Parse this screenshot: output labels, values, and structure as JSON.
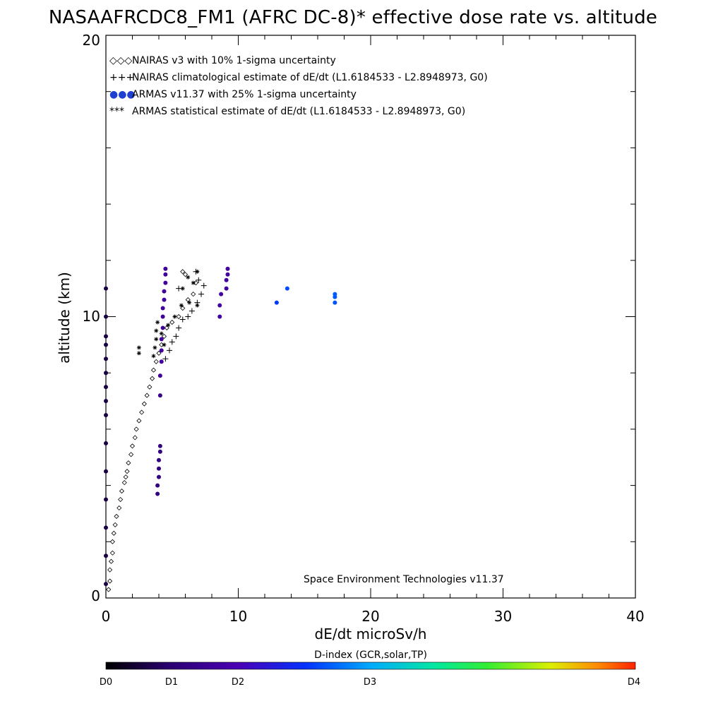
{
  "chart_data": {
    "type": "scatter",
    "title": "NASAAFRCDC8_FM1 (AFRC DC-8)* effective dose rate vs. altitude",
    "xlabel": "dE/dt microSv/h",
    "ylabel": "altitude (km)",
    "xlim": [
      0,
      40
    ],
    "ylim": [
      0,
      20
    ],
    "x_ticks": [
      "0",
      "10",
      "20",
      "30",
      "40"
    ],
    "y_ticks": [
      "0",
      "10",
      "20"
    ],
    "annotation": "Space Environment Technologies v11.37",
    "legend_position": "top-left",
    "colors": {
      "nairas": "#000000",
      "armas_dark": "#3a0060",
      "armas_blue": "#1f3fd0"
    },
    "legend": [
      {
        "symbol": "◇◇◇",
        "label": "NAIRAS v3 with 10% 1-sigma uncertainty"
      },
      {
        "symbol": "+++",
        "label": "NAIRAS climatological estimate of dE/dt (L1.6184533 - L2.8948973, G0)"
      },
      {
        "symbol": "●●●",
        "label": "ARMAS v11.37 with 25% 1-sigma uncertainty"
      },
      {
        "symbol": "***",
        "label": "ARMAS statistical estimate of dE/dt (L1.6184533 - L2.8948973, G0)"
      }
    ],
    "colorbar": {
      "title": "D-index (GCR,solar,TP)",
      "labels": [
        {
          "text": "D0",
          "value": 0
        },
        {
          "text": "D1",
          "value": 1
        },
        {
          "text": "D2",
          "value": 2
        },
        {
          "text": "D3",
          "value": 3
        },
        {
          "text": "D4",
          "value": 4
        }
      ]
    },
    "series": [
      {
        "name": "NAIRAS v3 with 10% 1-sigma uncertainty",
        "marker": "diamond",
        "points": [
          [
            0.2,
            0.3
          ],
          [
            0.3,
            0.6
          ],
          [
            0.3,
            1.0
          ],
          [
            0.4,
            1.3
          ],
          [
            0.5,
            1.6
          ],
          [
            0.5,
            2.0
          ],
          [
            0.6,
            2.3
          ],
          [
            0.7,
            2.6
          ],
          [
            0.8,
            2.9
          ],
          [
            1.0,
            3.2
          ],
          [
            1.1,
            3.5
          ],
          [
            1.2,
            3.8
          ],
          [
            1.4,
            4.1
          ],
          [
            1.5,
            4.3
          ],
          [
            1.6,
            4.5
          ],
          [
            1.7,
            4.8
          ],
          [
            1.9,
            5.1
          ],
          [
            2.0,
            5.4
          ],
          [
            2.2,
            5.7
          ],
          [
            2.3,
            6.0
          ],
          [
            2.5,
            6.3
          ],
          [
            2.7,
            6.6
          ],
          [
            2.9,
            6.9
          ],
          [
            3.1,
            7.2
          ],
          [
            3.3,
            7.5
          ],
          [
            3.5,
            7.8
          ],
          [
            3.6,
            8.1
          ],
          [
            3.8,
            8.4
          ],
          [
            4.0,
            8.7
          ],
          [
            4.2,
            9.0
          ],
          [
            4.4,
            9.3
          ],
          [
            4.6,
            9.6
          ],
          [
            5.0,
            9.8
          ],
          [
            5.5,
            10.0
          ],
          [
            5.8,
            10.3
          ],
          [
            6.2,
            10.6
          ],
          [
            6.6,
            10.8
          ],
          [
            6.8,
            11.2
          ],
          [
            6.0,
            11.5
          ],
          [
            5.8,
            11.6
          ]
        ]
      },
      {
        "name": "NAIRAS climatological estimate of dE/dt (L1.6184533 - L2.8948973, G0)",
        "marker": "plus",
        "points": [
          [
            4.5,
            8.5
          ],
          [
            4.8,
            8.8
          ],
          [
            5.0,
            9.1
          ],
          [
            5.3,
            9.3
          ],
          [
            5.5,
            9.6
          ],
          [
            5.8,
            9.9
          ],
          [
            6.2,
            10.0
          ],
          [
            6.5,
            10.2
          ],
          [
            6.9,
            10.5
          ],
          [
            7.2,
            10.8
          ],
          [
            7.4,
            11.1
          ],
          [
            7.0,
            11.3
          ],
          [
            6.8,
            11.6
          ],
          [
            5.5,
            11.0
          ]
        ]
      },
      {
        "name": "ARMAS v11.37 with 25% 1-sigma uncertainty",
        "marker": "dot",
        "points": [
          [
            0.0,
            0.5
          ],
          [
            0.0,
            1.5
          ],
          [
            0.0,
            2.5
          ],
          [
            0.0,
            3.5
          ],
          [
            0.0,
            4.5
          ],
          [
            0.0,
            5.5
          ],
          [
            0.0,
            6.5
          ],
          [
            0.0,
            7.0
          ],
          [
            0.0,
            7.5
          ],
          [
            0.0,
            8.0
          ],
          [
            0.0,
            8.5
          ],
          [
            0.0,
            9.0
          ],
          [
            0.0,
            9.3
          ],
          [
            0.0,
            10.0
          ],
          [
            0.0,
            11.0
          ],
          [
            3.9,
            3.7
          ],
          [
            3.9,
            4.0
          ],
          [
            4.0,
            4.3
          ],
          [
            4.0,
            4.6
          ],
          [
            4.0,
            4.9
          ],
          [
            4.1,
            5.2
          ],
          [
            4.1,
            5.4
          ],
          [
            4.1,
            7.2
          ],
          [
            4.1,
            7.9
          ],
          [
            4.2,
            8.4
          ],
          [
            4.2,
            8.8
          ],
          [
            4.2,
            9.2
          ],
          [
            4.3,
            9.6
          ],
          [
            4.3,
            10.0
          ],
          [
            4.3,
            10.3
          ],
          [
            4.4,
            10.6
          ],
          [
            4.4,
            10.9
          ],
          [
            4.5,
            11.2
          ],
          [
            4.5,
            11.5
          ],
          [
            4.5,
            11.7
          ],
          [
            8.6,
            10.0
          ],
          [
            8.6,
            10.4
          ],
          [
            8.7,
            10.8
          ],
          [
            9.1,
            11.0
          ],
          [
            9.1,
            11.3
          ],
          [
            9.2,
            11.5
          ],
          [
            9.2,
            11.7
          ],
          [
            12.9,
            10.5
          ],
          [
            13.7,
            11.0
          ],
          [
            17.3,
            10.5
          ],
          [
            17.3,
            10.7
          ],
          [
            17.3,
            10.8
          ]
        ],
        "dindex": [
          0.3,
          0.3,
          0.3,
          0.3,
          0.3,
          0.3,
          0.3,
          0.3,
          0.3,
          0.3,
          0.3,
          0.3,
          0.3,
          0.3,
          0.3,
          0.6,
          0.6,
          0.6,
          0.6,
          0.6,
          0.6,
          0.6,
          0.7,
          0.8,
          0.8,
          0.8,
          0.8,
          0.8,
          0.8,
          0.8,
          0.8,
          0.8,
          0.8,
          0.8,
          0.8,
          0.85,
          0.85,
          0.85,
          0.85,
          0.85,
          0.85,
          0.85,
          1.6,
          1.8,
          1.9,
          2.0,
          2.0
        ]
      },
      {
        "name": "ARMAS statistical estimate of dE/dt (L1.6184533 - L2.8948973, G0)",
        "marker": "star",
        "points": [
          [
            2.5,
            8.7
          ],
          [
            2.5,
            8.9
          ],
          [
            3.6,
            8.6
          ],
          [
            3.7,
            8.9
          ],
          [
            3.8,
            9.2
          ],
          [
            3.8,
            9.5
          ],
          [
            3.9,
            9.8
          ],
          [
            4.2,
            9.4
          ],
          [
            4.4,
            9.0
          ],
          [
            4.7,
            9.7
          ],
          [
            5.2,
            10.0
          ],
          [
            5.7,
            10.4
          ],
          [
            6.3,
            10.5
          ],
          [
            6.9,
            10.4
          ],
          [
            5.8,
            11.0
          ],
          [
            6.6,
            11.2
          ],
          [
            6.9,
            11.6
          ],
          [
            6.2,
            11.4
          ]
        ]
      }
    ]
  }
}
